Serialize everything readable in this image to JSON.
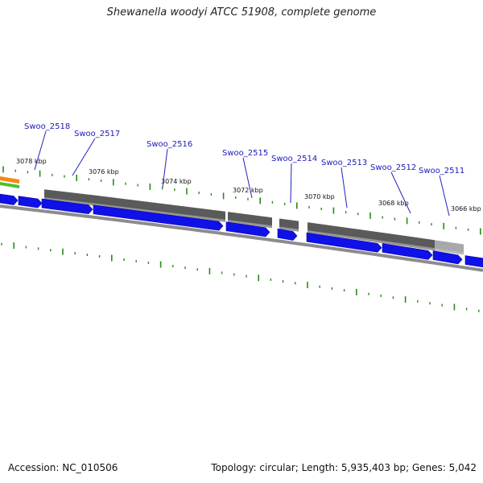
{
  "title": "Shewanella woodyi ATCC 51908, complete genome",
  "footer": {
    "accession": "Accession: NC_010506",
    "summary": "Topology: circular; Length: 5,935,403 bp; Genes: 5,042"
  },
  "colors": {
    "cds": "#1010e8",
    "gene_block": "#5a5a5a",
    "gene_block_light": "#a8a8a8",
    "backbone": "#8c8c8c",
    "tick": "#2a8a1a",
    "label_line": "#2020c0",
    "orange_track": "#f08a10",
    "green_track": "#50c030"
  },
  "scale_labels": [
    "3078 kbp",
    "3076 kbp",
    "3074 kbp",
    "3072 kbp",
    "3070 kbp",
    "3068 kbp",
    "3066 kbp"
  ],
  "genes": [
    "Swoo_2518",
    "Swoo_2517",
    "Swoo_2516",
    "Swoo_2515",
    "Swoo_2514",
    "Swoo_2513",
    "Swoo_2512",
    "Swoo_2511"
  ]
}
